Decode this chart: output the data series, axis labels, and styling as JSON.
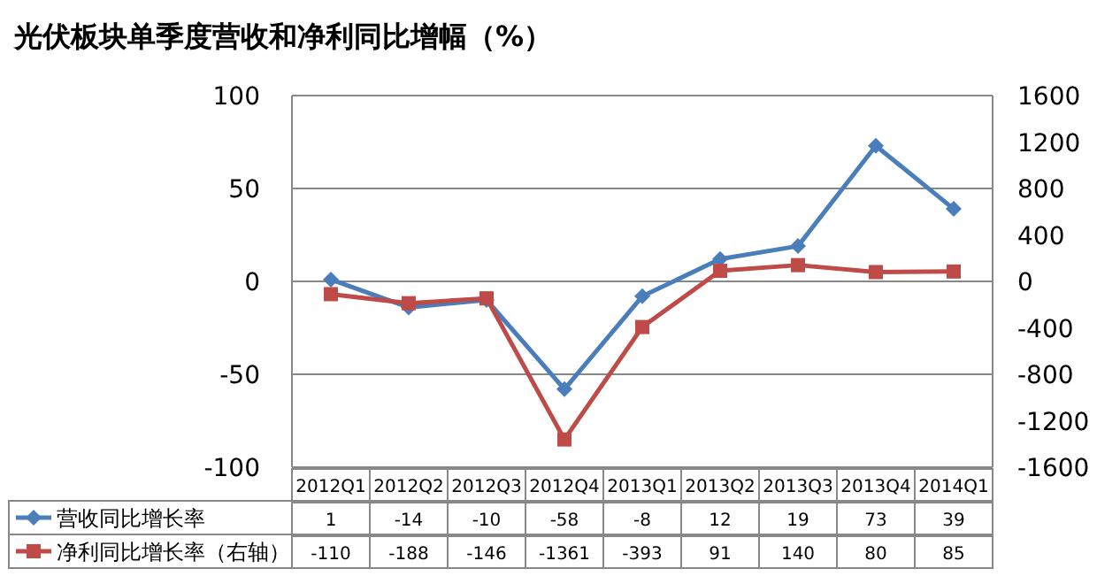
{
  "chart_data": {
    "type": "line",
    "title": "光伏板块单季度营收和净利同比增幅（%）",
    "categories": [
      "2012Q1",
      "2012Q2",
      "2012Q3",
      "2012Q4",
      "2013Q1",
      "2013Q2",
      "2013Q3",
      "2013Q4",
      "2014Q1"
    ],
    "series": [
      {
        "name": "营收同比增长率",
        "color": "#4a7ebb",
        "marker": "diamond",
        "values": [
          1,
          -14,
          -10,
          -58,
          -8,
          12,
          19,
          73,
          39
        ]
      },
      {
        "name": "净利同比增长率（右轴）",
        "color": "#be4b48",
        "marker": "square",
        "axis": "y2",
        "values": [
          -110,
          -188,
          -146,
          -1361,
          -393,
          91,
          140,
          80,
          85
        ]
      }
    ],
    "ylim": [
      -100,
      100
    ],
    "yticks": [
      -100,
      -50,
      0,
      50,
      100
    ],
    "y2lim": [
      -1600,
      1600
    ],
    "y2ticks": [
      -1600,
      -1200,
      -800,
      -400,
      0,
      400,
      800,
      1200,
      1600
    ],
    "grid": "y",
    "legend": "bottom",
    "data_labels": true
  }
}
